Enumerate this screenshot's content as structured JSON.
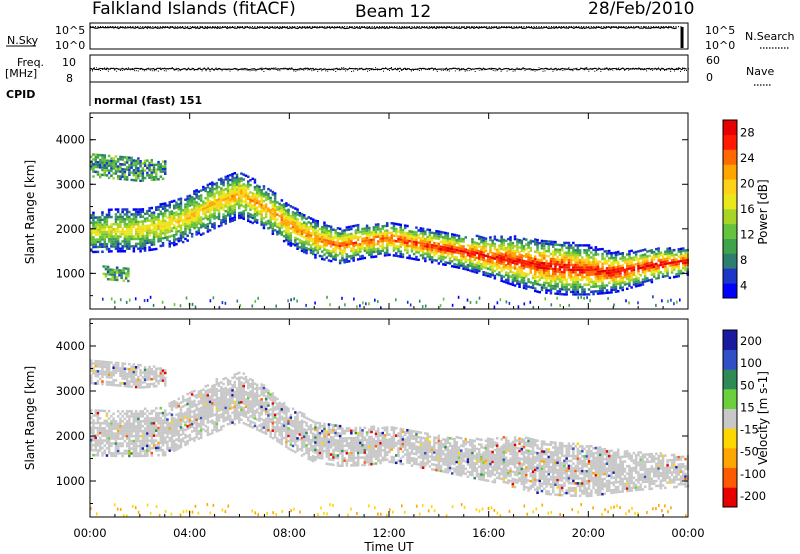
{
  "header": {
    "title": "Falkland Islands (fitACF)",
    "beam": "Beam 12",
    "date": "28/Feb/2010"
  },
  "strip_labels": {
    "nsky": "N.Sky",
    "nsearch": "N.Search",
    "freq_line1": "Freq.",
    "freq_line2": "[MHz]",
    "nave": "Nave",
    "cpid": "CPID",
    "cpid_value": "normal (fast) 151",
    "nsky_ticks": [
      "10^5",
      "10^0"
    ],
    "nsearch_ticks": [
      "10^5",
      "10^0"
    ],
    "freq_ticks": [
      "10",
      "8"
    ],
    "nave_ticks": [
      "60",
      "0"
    ]
  },
  "chart_data": [
    {
      "type": "heatmap",
      "name": "power-panel",
      "ylabel": "Slant Range [km]",
      "ylim": [
        200,
        4600
      ],
      "yticks": [
        "4000",
        "3000",
        "2000",
        "1000"
      ],
      "xlim": [
        0,
        24
      ],
      "colorbar_label": "Power [dB]",
      "colorbar_ticks": [
        "28",
        "24",
        "20",
        "16",
        "12",
        "8",
        "4"
      ],
      "colorbar_colors": [
        "#0000ff",
        "#1a37c8",
        "#2d7e6f",
        "#3ea34a",
        "#66c23a",
        "#a8d428",
        "#e8e81a",
        "#ffd21a",
        "#ffa500",
        "#ff6a00",
        "#ff1a00",
        "#e60000"
      ],
      "echo_bands": [
        {
          "t": [
            0,
            1,
            2,
            3,
            4,
            5,
            6,
            7,
            8,
            9,
            10,
            11,
            12,
            13,
            14,
            15,
            16,
            17,
            18,
            19,
            20,
            21,
            22,
            23,
            24
          ],
          "center": [
            1900,
            1950,
            1950,
            2050,
            2250,
            2550,
            2750,
            2450,
            2050,
            1750,
            1600,
            1700,
            1750,
            1650,
            1550,
            1450,
            1350,
            1250,
            1150,
            1100,
            1050,
            1000,
            1100,
            1200,
            1250
          ],
          "width": [
            450,
            480,
            480,
            500,
            520,
            550,
            520,
            480,
            450,
            420,
            400,
            380,
            360,
            360,
            360,
            380,
            450,
            550,
            600,
            600,
            550,
            450,
            400,
            350,
            300
          ]
        },
        {
          "t": [
            0,
            1,
            2,
            3
          ],
          "center": [
            3400,
            3350,
            3300,
            3300
          ],
          "width": [
            250,
            250,
            250,
            200
          ]
        },
        {
          "t": [
            0.5,
            1.5
          ],
          "center": [
            1000,
            950
          ],
          "width": [
            150,
            150
          ]
        }
      ]
    },
    {
      "type": "heatmap",
      "name": "velocity-panel",
      "ylabel": "Slant Range [km]",
      "ylim": [
        200,
        4600
      ],
      "yticks": [
        "4000",
        "3000",
        "2000",
        "1000"
      ],
      "xlim": [
        0,
        24
      ],
      "xlabel": "Time UT",
      "xticks": [
        "00:00",
        "04:00",
        "08:00",
        "12:00",
        "16:00",
        "20:00",
        "00:00"
      ],
      "colorbar_label": "Velocity [m s-1]",
      "colorbar_ticks": [
        "200",
        "100",
        "50",
        "15",
        "-15",
        "-50",
        "-100",
        "-200"
      ],
      "colorbar_colors": [
        "#1a1aa0",
        "#3050c8",
        "#2e8b57",
        "#6ccf3c",
        "#c8c8c8",
        "#ffd700",
        "#ffa500",
        "#ff5a00",
        "#e60000"
      ],
      "echo_bands": [
        {
          "t": [
            0,
            1,
            2,
            3,
            4,
            5,
            6,
            7,
            8,
            9,
            10,
            11,
            12,
            13,
            14,
            15,
            16,
            17,
            18,
            19,
            20,
            21,
            22,
            23,
            24
          ],
          "center": [
            2050,
            2050,
            2050,
            2100,
            2400,
            2650,
            2850,
            2550,
            2150,
            1850,
            1750,
            1750,
            1800,
            1700,
            1600,
            1500,
            1450,
            1400,
            1300,
            1250,
            1200,
            1200,
            1200,
            1200,
            1200
          ],
          "width": [
            500,
            520,
            520,
            550,
            560,
            580,
            560,
            520,
            480,
            460,
            440,
            420,
            400,
            400,
            400,
            420,
            480,
            560,
            600,
            600,
            560,
            480,
            420,
            380,
            340
          ]
        },
        {
          "t": [
            0,
            1,
            2,
            3
          ],
          "center": [
            3400,
            3350,
            3300,
            3300
          ],
          "width": [
            250,
            250,
            250,
            200
          ]
        }
      ]
    }
  ]
}
